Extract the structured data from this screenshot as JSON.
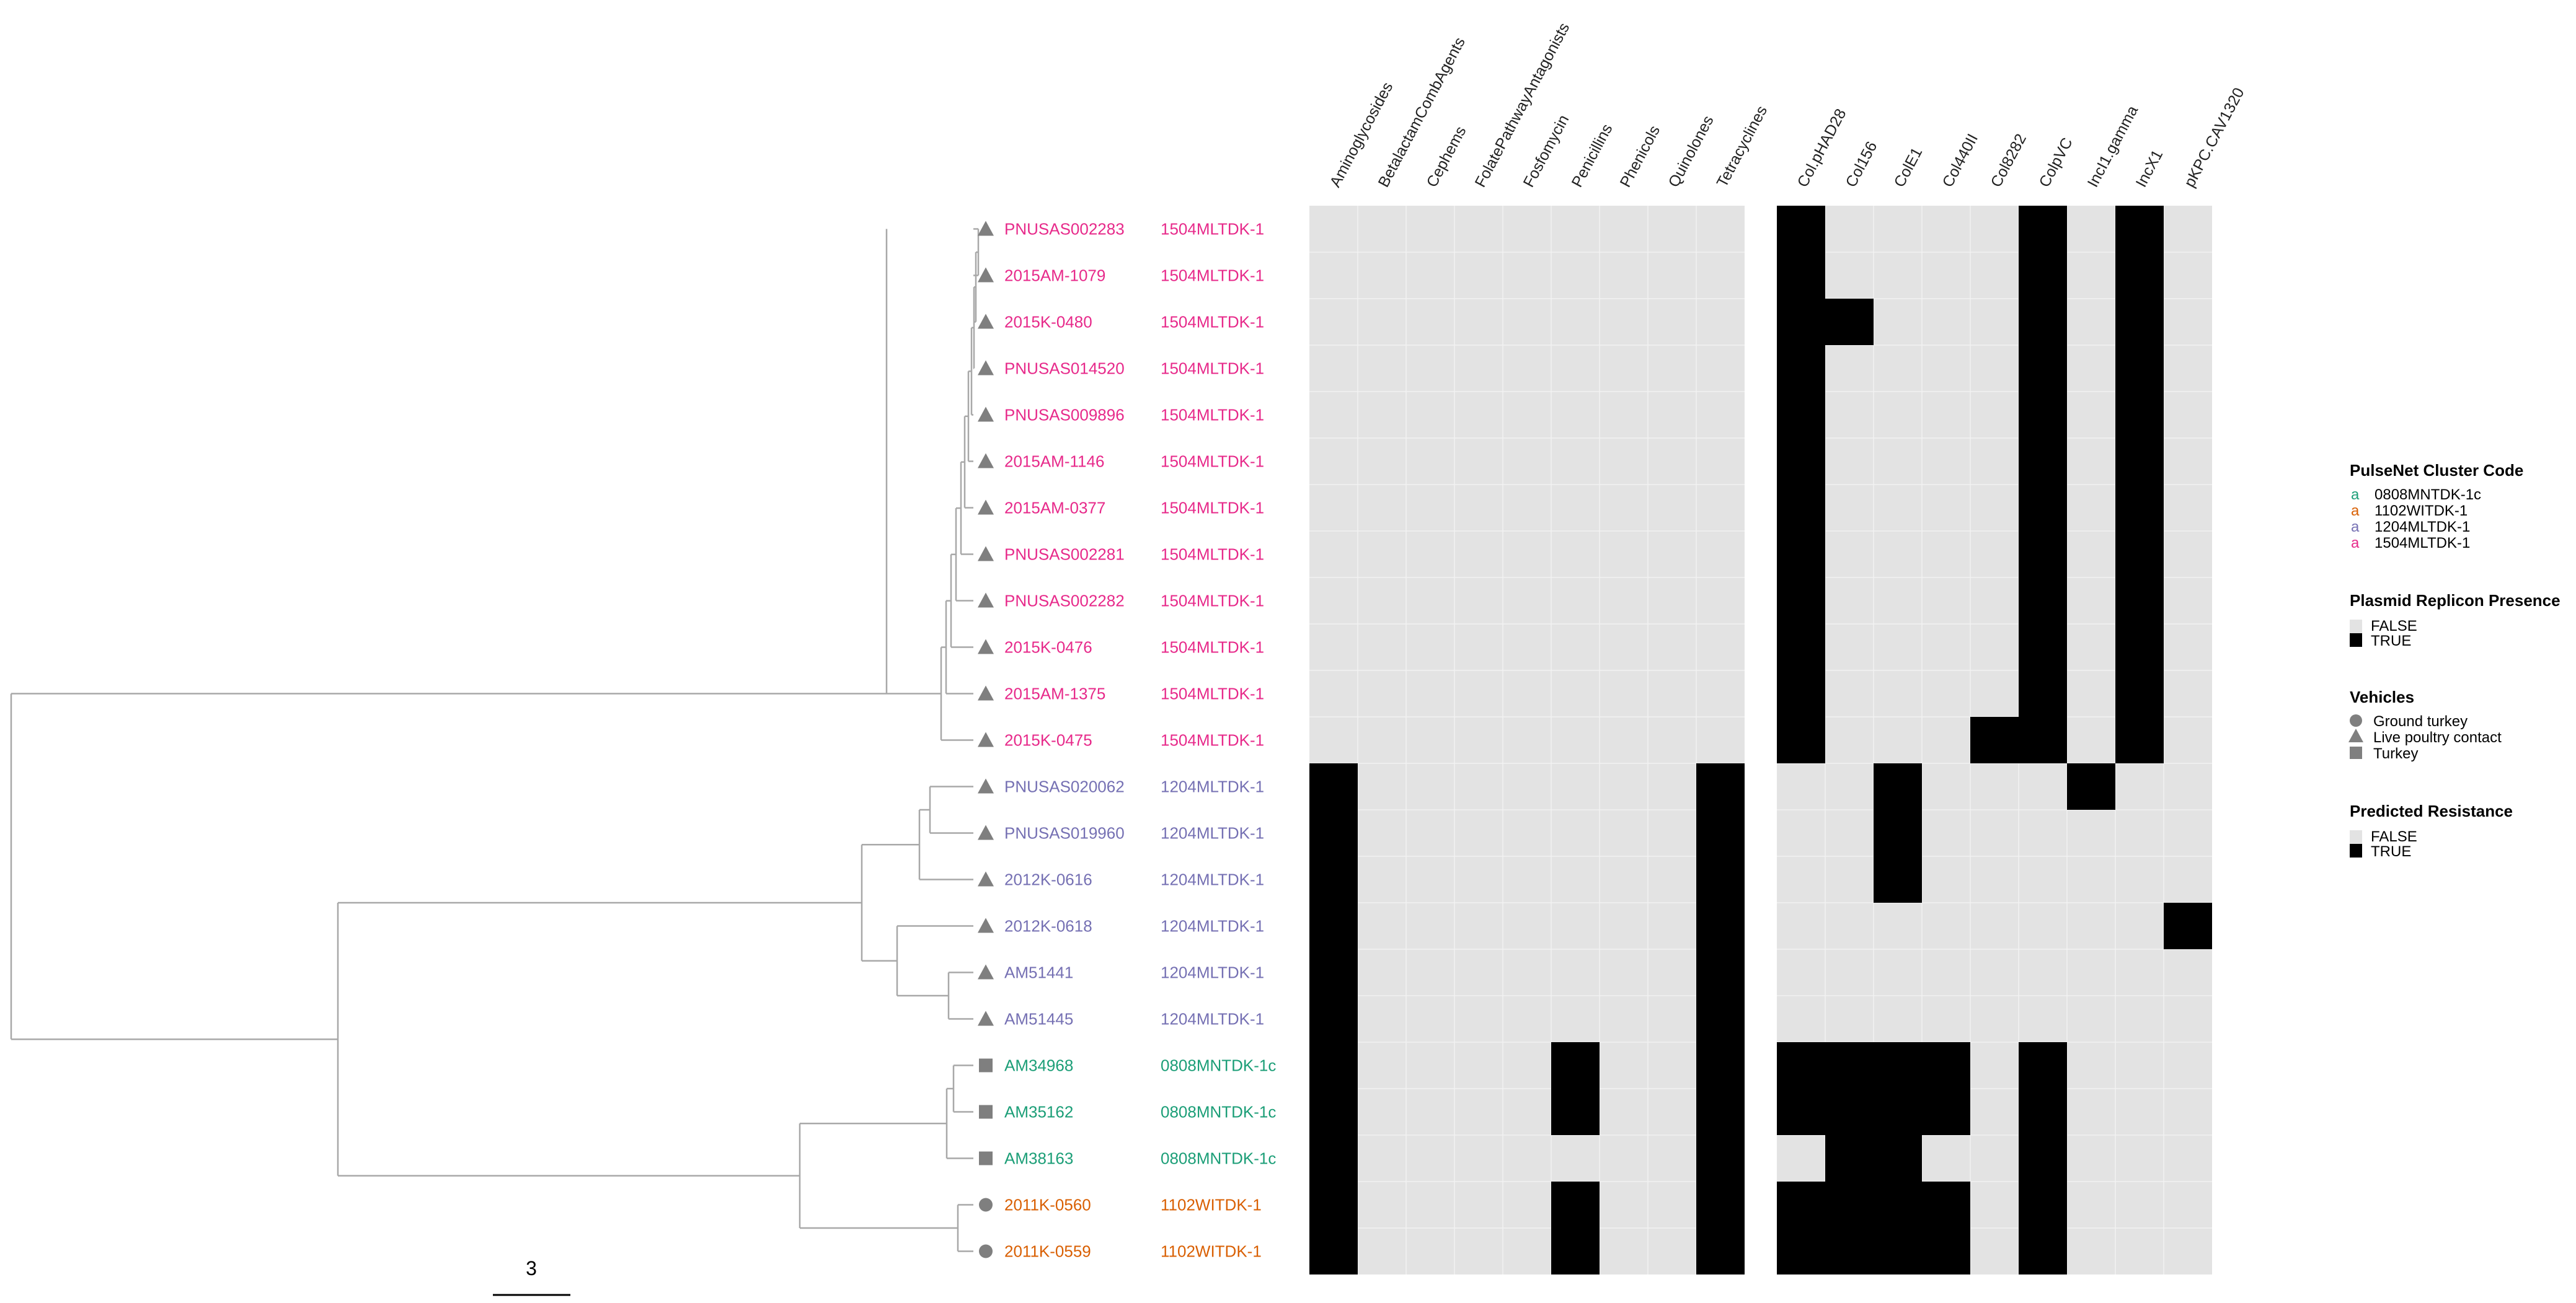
{
  "figure": {
    "scale_bar_label": "3",
    "resistance_columns": [
      "Aminoglycosides",
      "BetalactamCombAgents",
      "Cephems",
      "FolatePathwayAntagonists",
      "Fosfomycin",
      "Penicillins",
      "Phenicols",
      "Quinolones",
      "Tetracyclines"
    ],
    "plasmid_columns": [
      "Col.pHAD28",
      "Col156",
      "ColE1",
      "Col440II",
      "Col8282",
      "ColpVC",
      "IncI1.gamma",
      "IncX1",
      "pKPC.CAV1320"
    ],
    "cluster_colors": {
      "0808MNTDK-1c": "#1b9e77",
      "1102WITDK-1": "#d95f02",
      "1204MLTDK-1": "#7570b3",
      "1504MLTDK-1": "#e7298a"
    },
    "vehicle_shapes": {
      "Ground turkey": "circle",
      "Live poultry contact": "triangle",
      "Turkey": "square"
    },
    "isolates": [
      {
        "id": "PNUSAS002283",
        "cluster": "1504MLTDK-1",
        "vehicle": "Live poultry contact",
        "resistance": [
          0,
          0,
          0,
          0,
          0,
          0,
          0,
          0,
          0
        ],
        "plasmids": [
          1,
          0,
          0,
          0,
          0,
          1,
          0,
          1,
          0
        ]
      },
      {
        "id": "2015AM-1079",
        "cluster": "1504MLTDK-1",
        "vehicle": "Live poultry contact",
        "resistance": [
          0,
          0,
          0,
          0,
          0,
          0,
          0,
          0,
          0
        ],
        "plasmids": [
          1,
          0,
          0,
          0,
          0,
          1,
          0,
          1,
          0
        ]
      },
      {
        "id": "2015K-0480",
        "cluster": "1504MLTDK-1",
        "vehicle": "Live poultry contact",
        "resistance": [
          0,
          0,
          0,
          0,
          0,
          0,
          0,
          0,
          0
        ],
        "plasmids": [
          1,
          1,
          0,
          0,
          0,
          1,
          0,
          1,
          0
        ]
      },
      {
        "id": "PNUSAS014520",
        "cluster": "1504MLTDK-1",
        "vehicle": "Live poultry contact",
        "resistance": [
          0,
          0,
          0,
          0,
          0,
          0,
          0,
          0,
          0
        ],
        "plasmids": [
          1,
          0,
          0,
          0,
          0,
          1,
          0,
          1,
          0
        ]
      },
      {
        "id": "PNUSAS009896",
        "cluster": "1504MLTDK-1",
        "vehicle": "Live poultry contact",
        "resistance": [
          0,
          0,
          0,
          0,
          0,
          0,
          0,
          0,
          0
        ],
        "plasmids": [
          1,
          0,
          0,
          0,
          0,
          1,
          0,
          1,
          0
        ]
      },
      {
        "id": "2015AM-1146",
        "cluster": "1504MLTDK-1",
        "vehicle": "Live poultry contact",
        "resistance": [
          0,
          0,
          0,
          0,
          0,
          0,
          0,
          0,
          0
        ],
        "plasmids": [
          1,
          0,
          0,
          0,
          0,
          1,
          0,
          1,
          0
        ]
      },
      {
        "id": "2015AM-0377",
        "cluster": "1504MLTDK-1",
        "vehicle": "Live poultry contact",
        "resistance": [
          0,
          0,
          0,
          0,
          0,
          0,
          0,
          0,
          0
        ],
        "plasmids": [
          1,
          0,
          0,
          0,
          0,
          1,
          0,
          1,
          0
        ]
      },
      {
        "id": "PNUSAS002281",
        "cluster": "1504MLTDK-1",
        "vehicle": "Live poultry contact",
        "resistance": [
          0,
          0,
          0,
          0,
          0,
          0,
          0,
          0,
          0
        ],
        "plasmids": [
          1,
          0,
          0,
          0,
          0,
          1,
          0,
          1,
          0
        ]
      },
      {
        "id": "PNUSAS002282",
        "cluster": "1504MLTDK-1",
        "vehicle": "Live poultry contact",
        "resistance": [
          0,
          0,
          0,
          0,
          0,
          0,
          0,
          0,
          0
        ],
        "plasmids": [
          1,
          0,
          0,
          0,
          0,
          1,
          0,
          1,
          0
        ]
      },
      {
        "id": "2015K-0476",
        "cluster": "1504MLTDK-1",
        "vehicle": "Live poultry contact",
        "resistance": [
          0,
          0,
          0,
          0,
          0,
          0,
          0,
          0,
          0
        ],
        "plasmids": [
          1,
          0,
          0,
          0,
          0,
          1,
          0,
          1,
          0
        ]
      },
      {
        "id": "2015AM-1375",
        "cluster": "1504MLTDK-1",
        "vehicle": "Live poultry contact",
        "resistance": [
          0,
          0,
          0,
          0,
          0,
          0,
          0,
          0,
          0
        ],
        "plasmids": [
          1,
          0,
          0,
          0,
          0,
          1,
          0,
          1,
          0
        ]
      },
      {
        "id": "2015K-0475",
        "cluster": "1504MLTDK-1",
        "vehicle": "Live poultry contact",
        "resistance": [
          0,
          0,
          0,
          0,
          0,
          0,
          0,
          0,
          0
        ],
        "plasmids": [
          1,
          0,
          0,
          0,
          1,
          1,
          0,
          1,
          0
        ]
      },
      {
        "id": "PNUSAS020062",
        "cluster": "1204MLTDK-1",
        "vehicle": "Live poultry contact",
        "resistance": [
          1,
          0,
          0,
          0,
          0,
          0,
          0,
          0,
          1
        ],
        "plasmids": [
          0,
          0,
          1,
          0,
          0,
          0,
          1,
          0,
          0
        ]
      },
      {
        "id": "PNUSAS019960",
        "cluster": "1204MLTDK-1",
        "vehicle": "Live poultry contact",
        "resistance": [
          1,
          0,
          0,
          0,
          0,
          0,
          0,
          0,
          1
        ],
        "plasmids": [
          0,
          0,
          1,
          0,
          0,
          0,
          0,
          0,
          0
        ]
      },
      {
        "id": "2012K-0616",
        "cluster": "1204MLTDK-1",
        "vehicle": "Live poultry contact",
        "resistance": [
          1,
          0,
          0,
          0,
          0,
          0,
          0,
          0,
          1
        ],
        "plasmids": [
          0,
          0,
          1,
          0,
          0,
          0,
          0,
          0,
          0
        ]
      },
      {
        "id": "2012K-0618",
        "cluster": "1204MLTDK-1",
        "vehicle": "Live poultry contact",
        "resistance": [
          1,
          0,
          0,
          0,
          0,
          0,
          0,
          0,
          1
        ],
        "plasmids": [
          0,
          0,
          0,
          0,
          0,
          0,
          0,
          0,
          1
        ]
      },
      {
        "id": "AM51441",
        "cluster": "1204MLTDK-1",
        "vehicle": "Live poultry contact",
        "resistance": [
          1,
          0,
          0,
          0,
          0,
          0,
          0,
          0,
          1
        ],
        "plasmids": [
          0,
          0,
          0,
          0,
          0,
          0,
          0,
          0,
          0
        ]
      },
      {
        "id": "AM51445",
        "cluster": "1204MLTDK-1",
        "vehicle": "Live poultry contact",
        "resistance": [
          1,
          0,
          0,
          0,
          0,
          0,
          0,
          0,
          1
        ],
        "plasmids": [
          0,
          0,
          0,
          0,
          0,
          0,
          0,
          0,
          0
        ]
      },
      {
        "id": "AM34968",
        "cluster": "0808MNTDK-1c",
        "vehicle": "Turkey",
        "resistance": [
          1,
          0,
          0,
          0,
          0,
          1,
          0,
          0,
          1
        ],
        "plasmids": [
          1,
          1,
          1,
          1,
          0,
          1,
          0,
          0,
          0
        ]
      },
      {
        "id": "AM35162",
        "cluster": "0808MNTDK-1c",
        "vehicle": "Turkey",
        "resistance": [
          1,
          0,
          0,
          0,
          0,
          1,
          0,
          0,
          1
        ],
        "plasmids": [
          1,
          1,
          1,
          1,
          0,
          1,
          0,
          0,
          0
        ]
      },
      {
        "id": "AM38163",
        "cluster": "0808MNTDK-1c",
        "vehicle": "Turkey",
        "resistance": [
          1,
          0,
          0,
          0,
          0,
          0,
          0,
          0,
          1
        ],
        "plasmids": [
          0,
          1,
          1,
          0,
          0,
          1,
          0,
          0,
          0
        ]
      },
      {
        "id": "2011K-0560",
        "cluster": "1102WITDK-1",
        "vehicle": "Ground turkey",
        "resistance": [
          1,
          0,
          0,
          0,
          0,
          1,
          0,
          0,
          1
        ],
        "plasmids": [
          1,
          1,
          1,
          1,
          0,
          1,
          0,
          0,
          0
        ]
      },
      {
        "id": "2011K-0559",
        "cluster": "1102WITDK-1",
        "vehicle": "Ground turkey",
        "resistance": [
          1,
          0,
          0,
          0,
          0,
          1,
          0,
          0,
          1
        ],
        "plasmids": [
          1,
          1,
          1,
          1,
          0,
          1,
          0,
          0,
          0
        ]
      }
    ],
    "legends": {
      "cluster": {
        "title": "PulseNet Cluster Code",
        "glyph": "a",
        "items": [
          "0808MNTDK-1c",
          "1102WITDK-1",
          "1204MLTDK-1",
          "1504MLTDK-1"
        ]
      },
      "plasmid": {
        "title": "Plasmid Replicon Presence",
        "items": [
          "FALSE",
          "TRUE"
        ]
      },
      "vehicles": {
        "title": "Vehicles",
        "items": [
          "Ground turkey",
          "Live poultry contact",
          "Turkey"
        ]
      },
      "resistance": {
        "title": "Predicted Resistance",
        "items": [
          "FALSE",
          "TRUE"
        ]
      }
    }
  }
}
